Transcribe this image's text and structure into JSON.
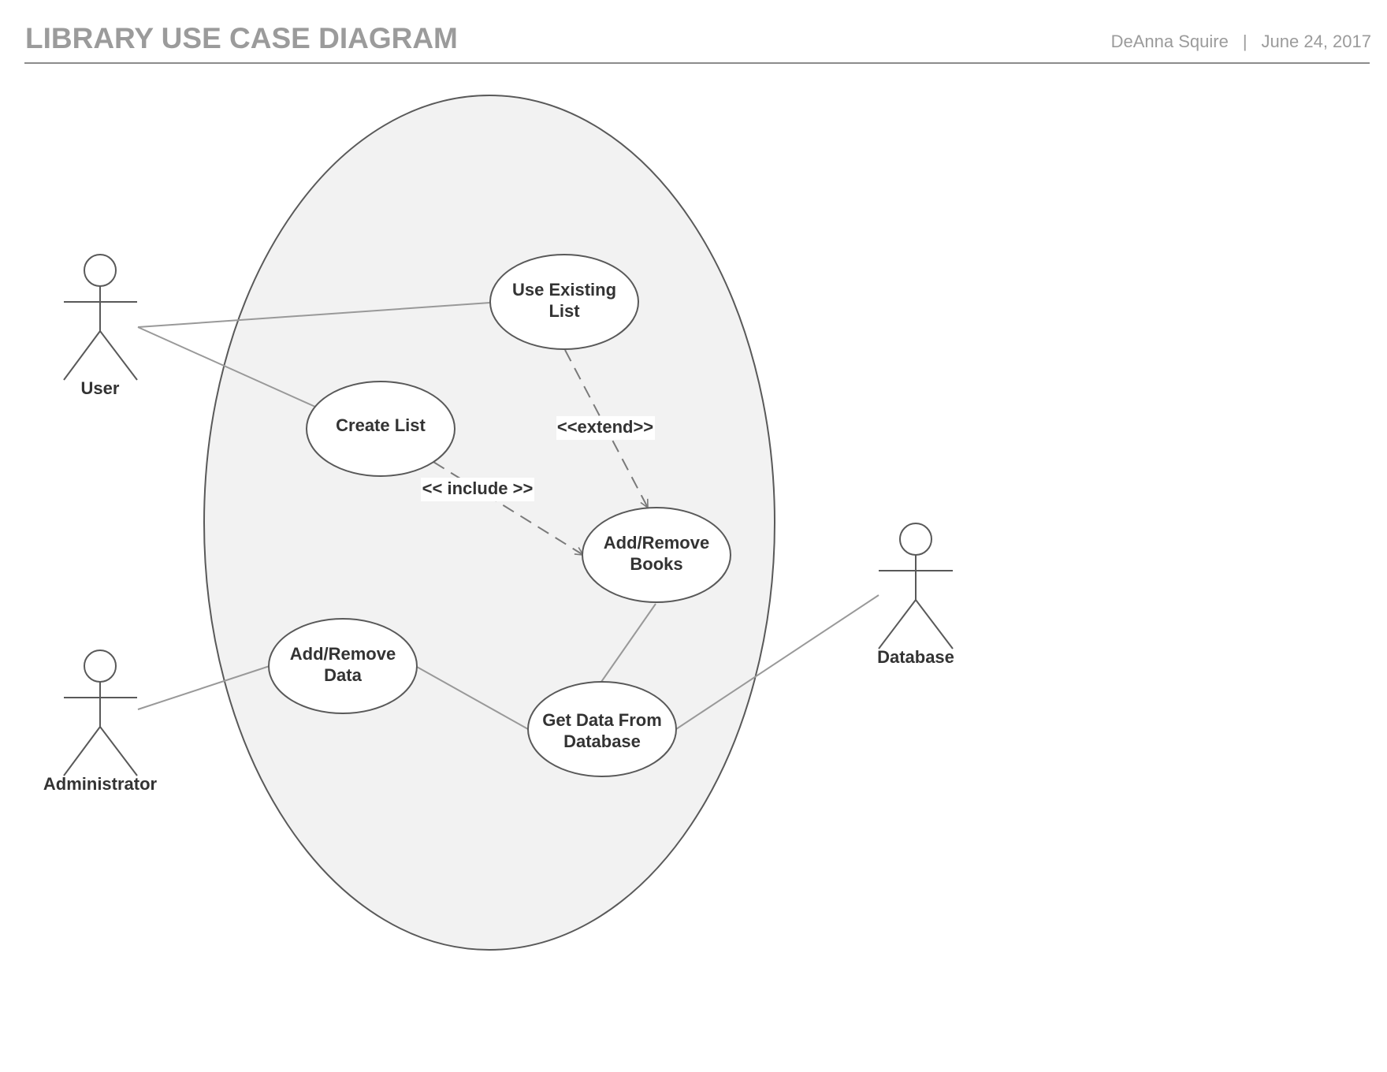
{
  "header": {
    "title": "LIBRARY USE CASE DIAGRAM",
    "author": "DeAnna Squire",
    "separator": "|",
    "date": "June 24, 2017"
  },
  "actors": {
    "user": "User",
    "administrator": "Administrator",
    "database": "Database"
  },
  "use_cases": {
    "use_existing_list": [
      "Use Existing",
      "List"
    ],
    "create_list": [
      "Create List"
    ],
    "add_remove_books": [
      "Add/Remove",
      "Books"
    ],
    "add_remove_data": [
      "Add/Remove",
      "Data"
    ],
    "get_data_from_database": [
      "Get Data From",
      "Database"
    ]
  },
  "relations": {
    "extend": "<<extend>>",
    "include": "<< include >>"
  },
  "colors": {
    "header_text": "#9b9b9b",
    "stroke": "#595959",
    "association": "#999999",
    "system_fill": "#f2f2f2",
    "label_text": "#333333"
  }
}
